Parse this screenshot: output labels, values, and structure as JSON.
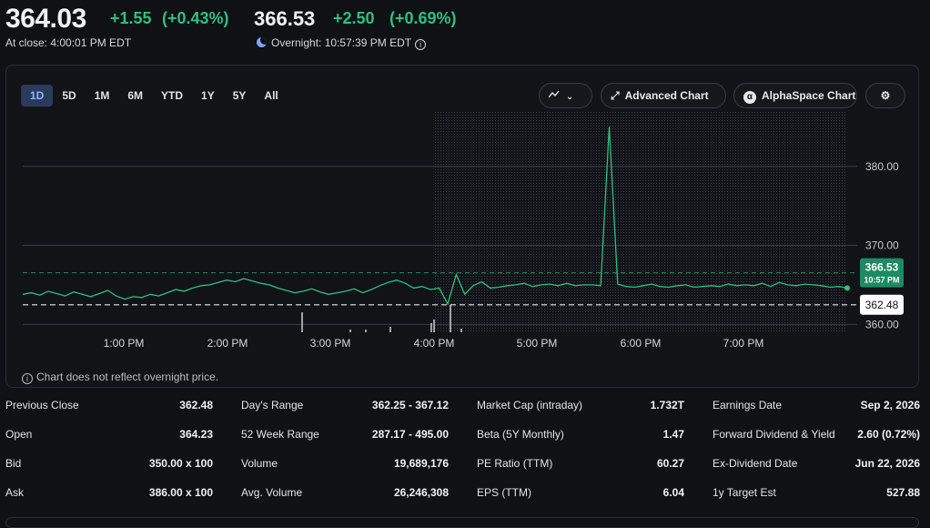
{
  "header": {
    "close_price": "364.03",
    "close_change": "+1.55",
    "close_change_pct": "(+0.43%)",
    "close_time": "At close: 4:00:01 PM EDT",
    "overnight_price": "366.53",
    "overnight_change": "+2.50",
    "overnight_change_pct": "(+0.69%)",
    "overnight_time": "Overnight: 10:57:39 PM EDT"
  },
  "chart": {
    "range_tabs": [
      "1D",
      "5D",
      "1M",
      "6M",
      "YTD",
      "1Y",
      "5Y",
      "All"
    ],
    "active_range": "1D",
    "chart_type_icon": "mountain-chart-icon",
    "advanced_chart_label": "Advanced Chart",
    "alphaspace_label": "AlphaSpace Chart",
    "settings_icon": "gear-icon",
    "disclaimer": "Chart does not reflect overnight price.",
    "colors": {
      "line": "#2fbf85",
      "grid": "#3a3d44",
      "price_badge": "#1d8a63",
      "prev_close_badge": "#ffffff"
    }
  },
  "chart_data": {
    "type": "line",
    "x_ticks": [
      "1:00 PM",
      "2:00 PM",
      "3:00 PM",
      "4:00 PM",
      "5:00 PM",
      "6:00 PM",
      "7:00 PM"
    ],
    "y_ticks": [
      "380.00",
      "370.00",
      "360.00"
    ],
    "ylim": [
      359,
      387
    ],
    "current_price": "366.53",
    "current_time": "10:57 PM",
    "previous_close": "362.48",
    "prices": [
      363.8,
      364.0,
      363.7,
      364.2,
      363.9,
      363.6,
      364.1,
      363.8,
      363.5,
      363.9,
      364.3,
      363.6,
      363.2,
      363.5,
      363.4,
      363.8,
      363.6,
      364.0,
      364.4,
      364.2,
      364.6,
      364.9,
      365.0,
      365.3,
      365.6,
      365.4,
      365.8,
      365.5,
      365.2,
      365.0,
      364.6,
      364.3,
      364.0,
      364.2,
      364.5,
      364.1,
      363.8,
      364.0,
      364.2,
      364.5,
      364.0,
      364.4,
      364.9,
      365.3,
      365.6,
      365.2,
      364.6,
      364.8,
      364.4,
      364.6,
      362.6,
      366.3,
      363.8,
      364.9,
      365.4,
      364.6,
      364.7,
      364.9,
      365.0,
      365.2,
      364.8,
      365.0,
      365.1,
      364.9,
      365.2,
      364.9,
      365.0,
      365.0,
      364.9,
      385.0,
      365.1,
      364.8,
      364.7,
      364.9,
      365.1,
      364.8,
      364.7,
      364.9,
      365.0,
      364.7,
      364.8,
      364.9,
      364.8,
      365.1,
      364.9,
      365.0,
      364.9,
      365.2,
      364.8,
      365.3,
      365.0,
      364.9,
      365.1,
      365.0,
      364.9,
      364.7,
      364.8,
      364.6
    ]
  },
  "stats": {
    "col1": [
      {
        "label": "Previous Close",
        "value": "362.48"
      },
      {
        "label": "Open",
        "value": "364.23"
      },
      {
        "label": "Bid",
        "value": "350.00 x 100"
      },
      {
        "label": "Ask",
        "value": "386.00 x 100"
      }
    ],
    "col2": [
      {
        "label": "Day's Range",
        "value": "362.25 - 367.12"
      },
      {
        "label": "52 Week Range",
        "value": "287.17 - 495.00"
      },
      {
        "label": "Volume",
        "value": "19,689,176"
      },
      {
        "label": "Avg. Volume",
        "value": "26,246,308"
      }
    ],
    "col3": [
      {
        "label": "Market Cap (intraday)",
        "value": "1.732T"
      },
      {
        "label": "Beta (5Y Monthly)",
        "value": "1.47"
      },
      {
        "label": "PE Ratio (TTM)",
        "value": "60.27"
      },
      {
        "label": "EPS (TTM)",
        "value": "6.04"
      }
    ],
    "col4": [
      {
        "label": "Earnings Date",
        "value": "Sep 2, 2026"
      },
      {
        "label": "Forward Dividend & Yield",
        "value": "2.60 (0.72%)"
      },
      {
        "label": "Ex-Dividend Date",
        "value": "Jun 22, 2026"
      },
      {
        "label": "1y Target Est",
        "value": "527.88"
      }
    ]
  }
}
